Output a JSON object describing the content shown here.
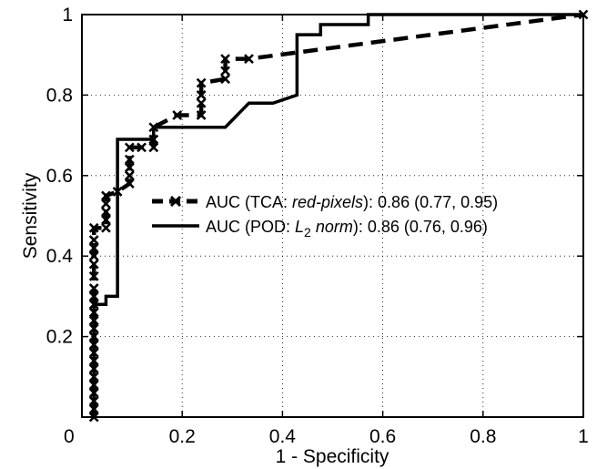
{
  "chart_data": {
    "type": "line",
    "title": "",
    "xlabel": "1 - Specificity",
    "ylabel": "Sensitivity",
    "xlim": [
      0,
      1
    ],
    "ylim": [
      0,
      1
    ],
    "xticks": [
      "0",
      "0.2",
      "0.4",
      "0.6",
      "0.8",
      "1"
    ],
    "yticks": [
      "0.2",
      "0.4",
      "0.6",
      "0.8",
      "1"
    ],
    "grid": true,
    "legend_position": "center-right",
    "series": [
      {
        "legend_parts": [
          "AUC (TCA: ",
          "red-pixels",
          "): 0.86 (0.77, 0.95)"
        ],
        "style": "dashed",
        "marker": "x",
        "color": "#000000",
        "points": [
          [
            0.024,
            0.0
          ],
          [
            0.024,
            0.02
          ],
          [
            0.024,
            0.04
          ],
          [
            0.024,
            0.06
          ],
          [
            0.024,
            0.08
          ],
          [
            0.024,
            0.1
          ],
          [
            0.024,
            0.12
          ],
          [
            0.024,
            0.14
          ],
          [
            0.024,
            0.16
          ],
          [
            0.024,
            0.18
          ],
          [
            0.024,
            0.2
          ],
          [
            0.024,
            0.22
          ],
          [
            0.024,
            0.24
          ],
          [
            0.024,
            0.26
          ],
          [
            0.024,
            0.28
          ],
          [
            0.024,
            0.3
          ],
          [
            0.024,
            0.32
          ],
          [
            0.024,
            0.35
          ],
          [
            0.024,
            0.38
          ],
          [
            0.024,
            0.4
          ],
          [
            0.024,
            0.42
          ],
          [
            0.024,
            0.44
          ],
          [
            0.024,
            0.47
          ],
          [
            0.048,
            0.47
          ],
          [
            0.048,
            0.49
          ],
          [
            0.048,
            0.51
          ],
          [
            0.048,
            0.53
          ],
          [
            0.048,
            0.55
          ],
          [
            0.071,
            0.56
          ],
          [
            0.095,
            0.58
          ],
          [
            0.095,
            0.6
          ],
          [
            0.095,
            0.62
          ],
          [
            0.095,
            0.64
          ],
          [
            0.095,
            0.67
          ],
          [
            0.119,
            0.67
          ],
          [
            0.143,
            0.67
          ],
          [
            0.143,
            0.69
          ],
          [
            0.143,
            0.72
          ],
          [
            0.19,
            0.75
          ],
          [
            0.238,
            0.75
          ],
          [
            0.238,
            0.78
          ],
          [
            0.238,
            0.8
          ],
          [
            0.238,
            0.83
          ],
          [
            0.286,
            0.84
          ],
          [
            0.286,
            0.86
          ],
          [
            0.286,
            0.89
          ],
          [
            0.333,
            0.89
          ],
          [
            1.0,
            1.0
          ]
        ]
      },
      {
        "legend_parts": [
          "AUC (POD: ",
          "L",
          "2",
          " norm",
          "): 0.86 (0.76, 0.96)"
        ],
        "style": "solid",
        "marker": "none",
        "color": "#000000",
        "points": [
          [
            0.024,
            0.0
          ],
          [
            0.024,
            0.28
          ],
          [
            0.048,
            0.28
          ],
          [
            0.048,
            0.3
          ],
          [
            0.071,
            0.3
          ],
          [
            0.071,
            0.69
          ],
          [
            0.143,
            0.69
          ],
          [
            0.143,
            0.72
          ],
          [
            0.238,
            0.72
          ],
          [
            0.286,
            0.72
          ],
          [
            0.333,
            0.78
          ],
          [
            0.381,
            0.78
          ],
          [
            0.405,
            0.79
          ],
          [
            0.429,
            0.8
          ],
          [
            0.429,
            0.95
          ],
          [
            0.476,
            0.95
          ],
          [
            0.476,
            0.975
          ],
          [
            0.571,
            0.975
          ],
          [
            0.571,
            1.0
          ],
          [
            1.0,
            1.0
          ]
        ]
      }
    ]
  }
}
